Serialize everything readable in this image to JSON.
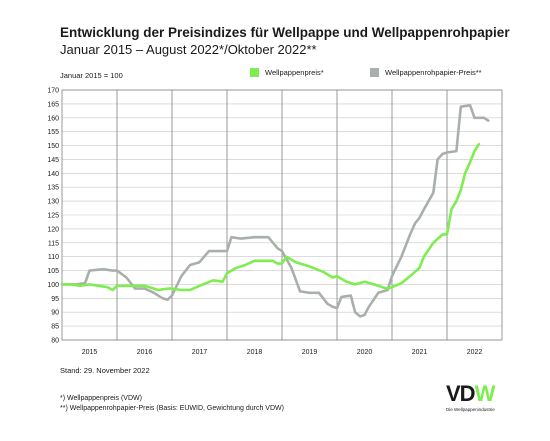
{
  "chart_data": {
    "type": "line",
    "title": "Entwicklung der Preisindizes für Wellpappe und Wellpappenrohpapier",
    "subtitle": "Januar 2015 – August 2022*/Oktober 2022**",
    "unit_note": "Januar 2015 = 100",
    "ylim": [
      80,
      170
    ],
    "yticks": [
      80,
      85,
      90,
      95,
      100,
      105,
      110,
      115,
      120,
      125,
      130,
      135,
      140,
      145,
      150,
      155,
      160,
      165,
      170
    ],
    "xlim": [
      2015.0,
      2023.0
    ],
    "year_labels": [
      "2015",
      "2016",
      "2017",
      "2018",
      "2019",
      "2020",
      "2021",
      "2022"
    ],
    "grid": true,
    "legend_position": "top",
    "series": [
      {
        "name": "Wellpappenpreis*",
        "color": "#7ded4f",
        "points": [
          [
            2015.0,
            100
          ],
          [
            2015.17,
            100
          ],
          [
            2015.33,
            99.5
          ],
          [
            2015.5,
            100
          ],
          [
            2015.67,
            99.5
          ],
          [
            2015.83,
            99
          ],
          [
            2015.92,
            98
          ],
          [
            2016.0,
            99.5
          ],
          [
            2016.25,
            99.5
          ],
          [
            2016.5,
            99.5
          ],
          [
            2016.75,
            98
          ],
          [
            2016.92,
            98.5
          ],
          [
            2017.0,
            98.5
          ],
          [
            2017.17,
            98
          ],
          [
            2017.33,
            98
          ],
          [
            2017.5,
            99.5
          ],
          [
            2017.75,
            101.5
          ],
          [
            2017.92,
            101
          ],
          [
            2018.0,
            104
          ],
          [
            2018.17,
            106
          ],
          [
            2018.33,
            107
          ],
          [
            2018.5,
            108.5
          ],
          [
            2018.67,
            108.5
          ],
          [
            2018.83,
            108.5
          ],
          [
            2018.92,
            107.5
          ],
          [
            2019.0,
            107.5
          ],
          [
            2019.08,
            110
          ],
          [
            2019.25,
            108
          ],
          [
            2019.5,
            106.5
          ],
          [
            2019.75,
            104.5
          ],
          [
            2019.92,
            102.5
          ],
          [
            2020.0,
            103
          ],
          [
            2020.17,
            101
          ],
          [
            2020.33,
            100
          ],
          [
            2020.5,
            101
          ],
          [
            2020.67,
            100
          ],
          [
            2020.83,
            99
          ],
          [
            2020.92,
            98.5
          ],
          [
            2021.0,
            99
          ],
          [
            2021.17,
            100.5
          ],
          [
            2021.33,
            103
          ],
          [
            2021.5,
            106
          ],
          [
            2021.58,
            110
          ],
          [
            2021.75,
            115
          ],
          [
            2021.92,
            118
          ],
          [
            2022.0,
            118
          ],
          [
            2022.08,
            127
          ],
          [
            2022.17,
            130
          ],
          [
            2022.25,
            134
          ],
          [
            2022.33,
            140
          ],
          [
            2022.42,
            144
          ],
          [
            2022.5,
            148
          ],
          [
            2022.58,
            150.5
          ]
        ]
      },
      {
        "name": "Wellpappenrohpapier-Preis**",
        "color": "#a9b0ab",
        "points": [
          [
            2015.0,
            100
          ],
          [
            2015.25,
            100
          ],
          [
            2015.42,
            100.5
          ],
          [
            2015.5,
            105
          ],
          [
            2015.75,
            105.5
          ],
          [
            2015.92,
            105
          ],
          [
            2016.0,
            105
          ],
          [
            2016.17,
            102.5
          ],
          [
            2016.33,
            98.5
          ],
          [
            2016.5,
            98.5
          ],
          [
            2016.67,
            97
          ],
          [
            2016.83,
            95
          ],
          [
            2016.92,
            94.5
          ],
          [
            2017.0,
            96
          ],
          [
            2017.17,
            103
          ],
          [
            2017.33,
            107
          ],
          [
            2017.5,
            108
          ],
          [
            2017.67,
            112
          ],
          [
            2017.83,
            112
          ],
          [
            2017.92,
            112
          ],
          [
            2018.0,
            112
          ],
          [
            2018.08,
            117
          ],
          [
            2018.25,
            116.5
          ],
          [
            2018.5,
            117
          ],
          [
            2018.75,
            117
          ],
          [
            2018.92,
            113
          ],
          [
            2019.0,
            112
          ],
          [
            2019.17,
            106
          ],
          [
            2019.33,
            97.5
          ],
          [
            2019.5,
            97
          ],
          [
            2019.67,
            97
          ],
          [
            2019.83,
            93
          ],
          [
            2019.92,
            92
          ],
          [
            2020.0,
            91.5
          ],
          [
            2020.08,
            95.5
          ],
          [
            2020.25,
            96
          ],
          [
            2020.33,
            90
          ],
          [
            2020.42,
            88.5
          ],
          [
            2020.5,
            89
          ],
          [
            2020.58,
            92
          ],
          [
            2020.75,
            97
          ],
          [
            2020.92,
            98
          ],
          [
            2021.0,
            103
          ],
          [
            2021.17,
            110
          ],
          [
            2021.33,
            118
          ],
          [
            2021.42,
            122
          ],
          [
            2021.5,
            124
          ],
          [
            2021.58,
            127
          ],
          [
            2021.75,
            133
          ],
          [
            2021.83,
            145
          ],
          [
            2021.92,
            147
          ],
          [
            2022.0,
            147.5
          ],
          [
            2022.17,
            148
          ],
          [
            2022.25,
            164
          ],
          [
            2022.42,
            164.5
          ],
          [
            2022.5,
            160
          ],
          [
            2022.67,
            160
          ],
          [
            2022.75,
            159
          ]
        ]
      }
    ]
  },
  "footer": {
    "stand": "Stand: 29. November 2022",
    "note1": "*) Wellpappenpreis (VDW)",
    "note2": "**) Wellpappenrohpapier-Preis (Basis: EUWID, Gewichtung durch VDW)"
  },
  "logo": {
    "text": "VDW",
    "subtitle": "Die Wellpappenindustrie",
    "color": "#7ded4f"
  }
}
